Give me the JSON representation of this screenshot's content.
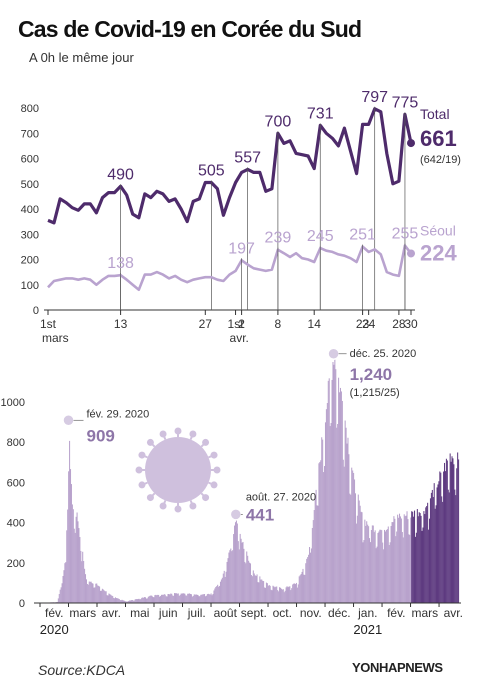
{
  "header": {
    "title": "Cas de Covid-19 en Corée du Sud",
    "subtitle": "A 0h le même jour"
  },
  "footer": {
    "source": "Source:KDCA",
    "agency": "YONHAPNEWS"
  },
  "colors": {
    "total": "#4e2b6b",
    "seoul": "#b9a3cf",
    "bar_light": "#b8a2cc",
    "bar_dark": "#5e3b80",
    "virus": "#c7b6d8"
  },
  "icons": [
    "coronavirus-icon",
    "yonhap-logo-icon"
  ],
  "chart_data": [
    {
      "type": "line",
      "title": "",
      "ylim": [
        0,
        800
      ],
      "yticks": [
        "0",
        "100",
        "200",
        "300",
        "400",
        "500",
        "600",
        "700",
        "800"
      ],
      "x": [
        "1",
        "2",
        "3",
        "4",
        "5",
        "6",
        "7",
        "8",
        "9",
        "10",
        "11",
        "12",
        "13",
        "14",
        "15",
        "16",
        "17",
        "18",
        "19",
        "20",
        "21",
        "22",
        "23",
        "24",
        "25",
        "26",
        "27",
        "28",
        "29",
        "30",
        "31",
        "1",
        "2",
        "3",
        "4",
        "5",
        "6",
        "7",
        "8",
        "9",
        "10",
        "11",
        "12",
        "13",
        "14",
        "15",
        "16",
        "17",
        "18",
        "19",
        "20",
        "21",
        "22",
        "23",
        "24",
        "25",
        "26",
        "27",
        "28",
        "29",
        "30"
      ],
      "x_ticks": [
        {
          "i": 0,
          "label": "1st"
        },
        {
          "i": 12,
          "label": "13"
        },
        {
          "i": 26,
          "label": "27"
        },
        {
          "i": 31,
          "label": "1st"
        },
        {
          "i": 32,
          "label": "2"
        },
        {
          "i": 38,
          "label": "8"
        },
        {
          "i": 44,
          "label": "14"
        },
        {
          "i": 52,
          "label": "23"
        },
        {
          "i": 53,
          "label": "24"
        },
        {
          "i": 58,
          "label": "28"
        },
        {
          "i": 60,
          "label": "30"
        }
      ],
      "x_month_labels": [
        {
          "i": 0,
          "label": "mars"
        },
        {
          "i": 31,
          "label": "avr."
        }
      ],
      "series": [
        {
          "name": "Total",
          "values": [
            355,
            345,
            440,
            425,
            405,
            395,
            420,
            420,
            385,
            445,
            465,
            465,
            490,
            455,
            380,
            365,
            460,
            445,
            470,
            460,
            430,
            440,
            400,
            350,
            430,
            440,
            505,
            505,
            480,
            375,
            445,
            505,
            545,
            557,
            545,
            545,
            470,
            480,
            700,
            660,
            670,
            620,
            615,
            610,
            560,
            731,
            700,
            680,
            650,
            720,
            630,
            540,
            735,
            735,
            797,
            785,
            620,
            500,
            510,
            775,
            661
          ],
          "labels": [
            {
              "i": 12,
              "text": "490"
            },
            {
              "i": 27,
              "text": "505"
            },
            {
              "i": 33,
              "text": "557"
            },
            {
              "i": 38,
              "text": "700"
            },
            {
              "i": 45,
              "text": "731"
            },
            {
              "i": 54,
              "text": "797"
            },
            {
              "i": 59,
              "text": "775"
            }
          ],
          "end_label": "661",
          "end_sub": "(642/19)"
        },
        {
          "name": "Séoul",
          "values": [
            90,
            115,
            120,
            125,
            125,
            120,
            125,
            120,
            100,
            120,
            135,
            135,
            138,
            120,
            100,
            80,
            140,
            140,
            150,
            140,
            125,
            135,
            120,
            110,
            120,
            125,
            130,
            130,
            120,
            115,
            140,
            155,
            197,
            180,
            165,
            160,
            155,
            160,
            239,
            225,
            210,
            225,
            205,
            200,
            190,
            245,
            235,
            230,
            220,
            215,
            205,
            190,
            251,
            230,
            240,
            220,
            150,
            140,
            135,
            255,
            224
          ],
          "labels": [
            {
              "i": 12,
              "text": "138"
            },
            {
              "i": 32,
              "text": "197"
            },
            {
              "i": 38,
              "text": "239"
            },
            {
              "i": 45,
              "text": "245"
            },
            {
              "i": 52,
              "text": "251"
            },
            {
              "i": 59,
              "text": "255"
            }
          ],
          "end_label": "224"
        }
      ]
    },
    {
      "type": "bar",
      "title": "",
      "ylim": [
        0,
        1000
      ],
      "yticks": [
        "0",
        "200",
        "400",
        "600",
        "800",
        "1000"
      ],
      "x_months": [
        "fév.",
        "mars",
        "avr.",
        "mai",
        "juin",
        "juil.",
        "août",
        "sept.",
        "oct.",
        "nov.",
        "déc.",
        "jan.",
        "fév.",
        "mars",
        "avr."
      ],
      "x_years": [
        {
          "month_index": 0,
          "label": "2020"
        },
        {
          "month_index": 11,
          "label": "2021"
        }
      ],
      "keypoints": [
        {
          "month": 0.0,
          "value": 0
        },
        {
          "month": 0.6,
          "value": 5
        },
        {
          "month": 0.9,
          "value": 220
        },
        {
          "month": 1.0,
          "value": 909
        },
        {
          "month": 1.1,
          "value": 500
        },
        {
          "month": 1.3,
          "value": 430
        },
        {
          "month": 1.6,
          "value": 120
        },
        {
          "month": 2.0,
          "value": 90
        },
        {
          "month": 2.5,
          "value": 35
        },
        {
          "month": 3.0,
          "value": 8
        },
        {
          "month": 3.4,
          "value": 20
        },
        {
          "month": 4.0,
          "value": 40
        },
        {
          "month": 4.5,
          "value": 45
        },
        {
          "month": 5.0,
          "value": 50
        },
        {
          "month": 5.5,
          "value": 40
        },
        {
          "month": 6.0,
          "value": 45
        },
        {
          "month": 6.4,
          "value": 130
        },
        {
          "month": 6.7,
          "value": 300
        },
        {
          "month": 6.87,
          "value": 441
        },
        {
          "month": 7.0,
          "value": 330
        },
        {
          "month": 7.5,
          "value": 150
        },
        {
          "month": 8.0,
          "value": 90
        },
        {
          "month": 8.5,
          "value": 70
        },
        {
          "month": 9.0,
          "value": 100
        },
        {
          "month": 9.4,
          "value": 230
        },
        {
          "month": 9.7,
          "value": 580
        },
        {
          "month": 10.0,
          "value": 950
        },
        {
          "month": 10.3,
          "value": 1240
        },
        {
          "month": 10.6,
          "value": 1000
        },
        {
          "month": 11.0,
          "value": 600
        },
        {
          "month": 11.3,
          "value": 420
        },
        {
          "month": 11.6,
          "value": 380
        },
        {
          "month": 12.0,
          "value": 360
        },
        {
          "month": 12.5,
          "value": 430
        },
        {
          "month": 13.0,
          "value": 440
        },
        {
          "month": 13.5,
          "value": 470
        },
        {
          "month": 14.0,
          "value": 620
        },
        {
          "month": 14.4,
          "value": 740
        },
        {
          "month": 14.7,
          "value": 700
        }
      ],
      "dark_from_month": 13.0,
      "annotations": [
        {
          "month": 1.0,
          "value": 909,
          "date": "fév. 29. 2020",
          "text": "909"
        },
        {
          "month": 6.87,
          "value": 441,
          "date": "août. 27. 2020",
          "text": "441"
        },
        {
          "month": 10.3,
          "value": 1240,
          "date": "déc. 25. 2020",
          "text": "1,240",
          "sub": "(1,215/25)"
        }
      ]
    }
  ]
}
